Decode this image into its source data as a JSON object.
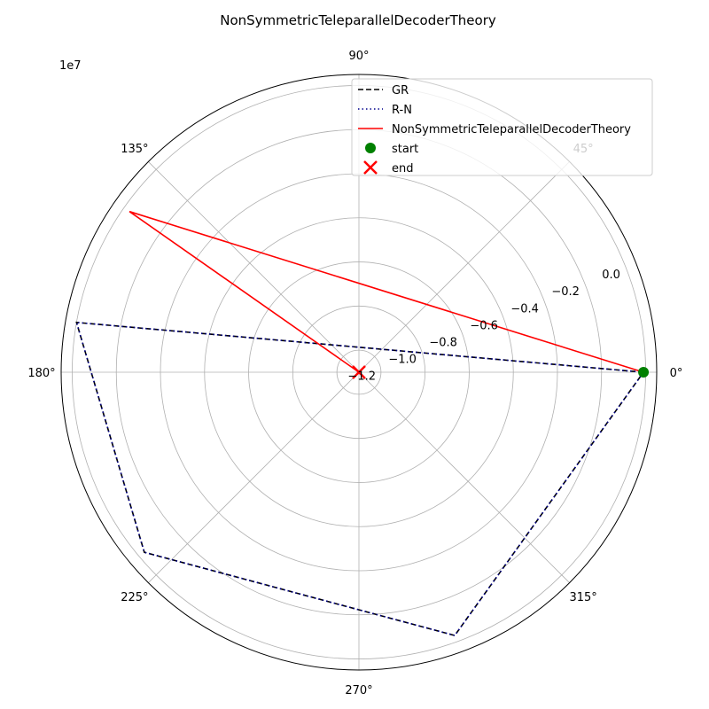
{
  "chart_data": {
    "type": "polar-line",
    "title": "NonSymmetricTeleparallelDecoderTheory",
    "offset_label": "1e7",
    "angle_ticks": [
      {
        "deg": 0,
        "label": "0°"
      },
      {
        "deg": 45,
        "label": "45°"
      },
      {
        "deg": 90,
        "label": "90°"
      },
      {
        "deg": 135,
        "label": "135°"
      },
      {
        "deg": 180,
        "label": "180°"
      },
      {
        "deg": 225,
        "label": "225°"
      },
      {
        "deg": 270,
        "label": "270°"
      },
      {
        "deg": 315,
        "label": "315°"
      }
    ],
    "radial_ticks": [
      {
        "value": -1.2,
        "label": "−1.2"
      },
      {
        "value": -1.0,
        "label": "−1.0"
      },
      {
        "value": -0.8,
        "label": "−0.8"
      },
      {
        "value": -0.6,
        "label": "−0.6"
      },
      {
        "value": -0.4,
        "label": "−0.4"
      },
      {
        "value": -0.2,
        "label": "−0.2"
      },
      {
        "value": 0.0,
        "label": "0.0"
      }
    ],
    "r_lim": [
      -1.3,
      0.05
    ],
    "grid": true,
    "legend_position": "top-right",
    "series": [
      {
        "name": "GR",
        "color": "#000000",
        "style": "dashed",
        "points": [
          {
            "theta": 0,
            "r": -0.01
          },
          {
            "theta": 170,
            "r": 0.0
          },
          {
            "theta": 220,
            "r": -0.03
          },
          {
            "theta": 290,
            "r": -0.03
          },
          {
            "theta": 360,
            "r": -0.01
          }
        ]
      },
      {
        "name": "R-N",
        "color": "#00008b",
        "style": "dotted",
        "points": [
          {
            "theta": 0,
            "r": -0.01
          },
          {
            "theta": 170,
            "r": 0.0
          },
          {
            "theta": 220,
            "r": -0.03
          },
          {
            "theta": 290,
            "r": -0.03
          },
          {
            "theta": 360,
            "r": -0.01
          }
        ]
      },
      {
        "name": "NonSymmetricTeleparallelDecoderTheory",
        "color": "#ff0000",
        "style": "solid",
        "points": [
          {
            "theta": 0,
            "r": -0.01
          },
          {
            "theta": 145,
            "r": -0.03
          },
          {
            "theta": 330,
            "r": -1.3
          }
        ]
      }
    ],
    "markers": [
      {
        "name": "start",
        "color": "#008000",
        "shape": "circle",
        "theta": 0,
        "r": -0.01
      },
      {
        "name": "end",
        "color": "#ff0000",
        "shape": "x",
        "theta": 330,
        "r": -1.3
      }
    ]
  }
}
